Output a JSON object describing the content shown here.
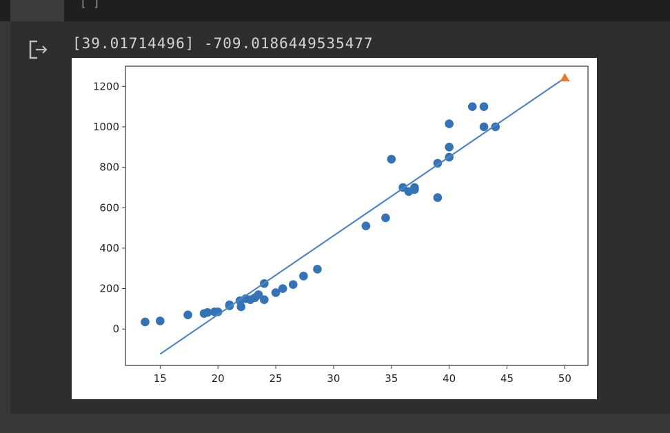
{
  "output": {
    "printed_text": "[39.01714496] -709.0186449535477"
  },
  "icons": {
    "output_icon": "output-redirect-icon"
  },
  "chart_data": {
    "type": "scatter",
    "title": "",
    "xlabel": "",
    "ylabel": "",
    "xlim": [
      12,
      52
    ],
    "ylim": [
      -180,
      1300
    ],
    "x_ticks": [
      15,
      20,
      25,
      30,
      35,
      40,
      45,
      50
    ],
    "y_ticks": [
      0,
      200,
      400,
      600,
      800,
      1000,
      1200
    ],
    "grid": false,
    "series": [
      {
        "type": "scatter",
        "color": "#3573b4",
        "points": [
          [
            13.7,
            35
          ],
          [
            15.0,
            40
          ],
          [
            17.4,
            70
          ],
          [
            18.8,
            77
          ],
          [
            19.1,
            82
          ],
          [
            19.7,
            85
          ],
          [
            20.0,
            85
          ],
          [
            21.0,
            115
          ],
          [
            21.0,
            120
          ],
          [
            21.9,
            140
          ],
          [
            22.0,
            110
          ],
          [
            22.4,
            150
          ],
          [
            22.8,
            145
          ],
          [
            23.2,
            155
          ],
          [
            23.5,
            170
          ],
          [
            24.0,
            145
          ],
          [
            24.0,
            225
          ],
          [
            25.0,
            180
          ],
          [
            25.6,
            200
          ],
          [
            26.5,
            220
          ],
          [
            27.4,
            262
          ],
          [
            28.6,
            296
          ],
          [
            32.8,
            510
          ],
          [
            34.5,
            550
          ],
          [
            35.0,
            840
          ],
          [
            36.0,
            700
          ],
          [
            36.5,
            680
          ],
          [
            37.0,
            690
          ],
          [
            37.0,
            700
          ],
          [
            39.0,
            650
          ],
          [
            39.0,
            820
          ],
          [
            40.0,
            850
          ],
          [
            40.0,
            900
          ],
          [
            40.0,
            1015
          ],
          [
            42.0,
            1100
          ],
          [
            43.0,
            1100
          ],
          [
            43.0,
            1000
          ],
          [
            44.0,
            1000
          ]
        ]
      },
      {
        "type": "line",
        "color": "#4f86c0",
        "points": [
          [
            15.0,
            -123.76
          ],
          [
            50.0,
            1241.84
          ]
        ]
      },
      {
        "type": "scatter",
        "marker": "triangle",
        "color": "#e57c23",
        "points": [
          [
            50.0,
            1241.84
          ]
        ]
      }
    ]
  }
}
